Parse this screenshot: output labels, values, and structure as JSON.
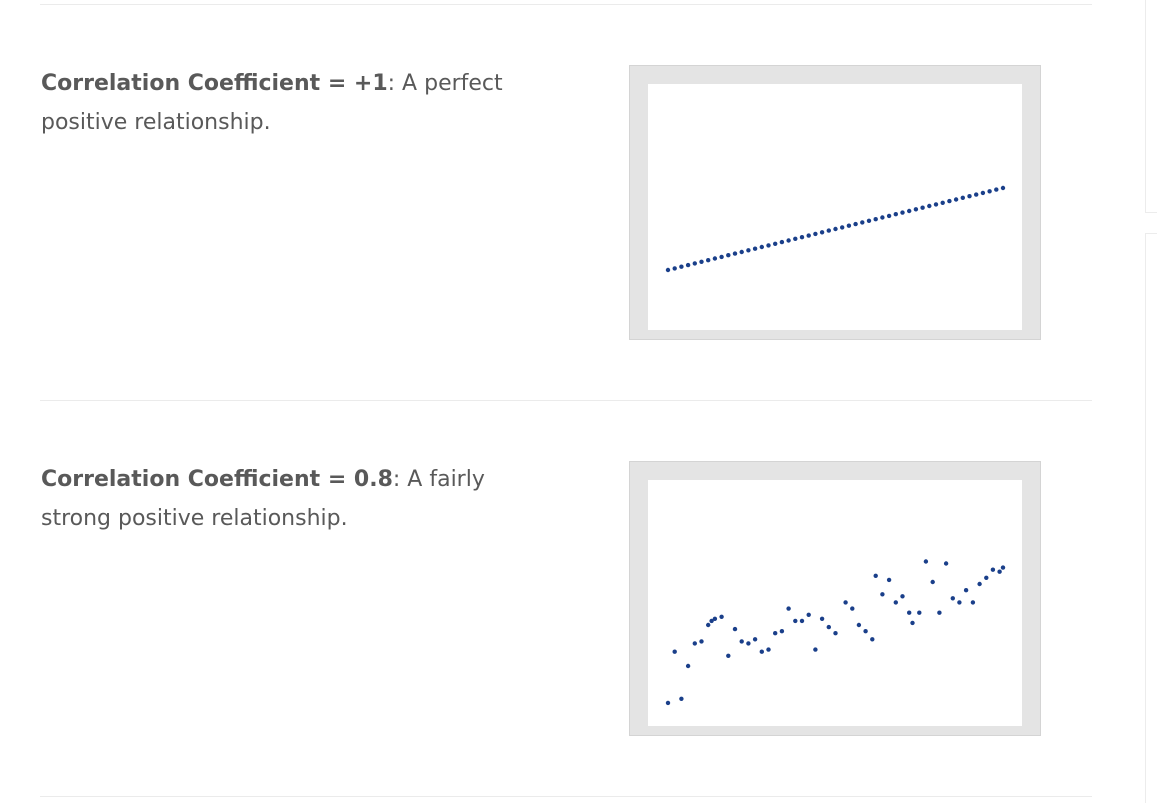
{
  "sections": [
    {
      "bold_text": "Correlation Coefficient = +1",
      "normal_text": ": A perfect positive relationship."
    },
    {
      "bold_text": "Correlation Coefficient = 0.8",
      "normal_text": ": A fairly strong positive relationship."
    }
  ],
  "chart_data": [
    {
      "type": "scatter",
      "title": "",
      "xlabel": "",
      "ylabel": "",
      "xlim": [
        0,
        100
      ],
      "ylim": [
        0,
        100
      ],
      "grid": false,
      "series": [
        {
          "color": "#1a3f8a",
          "points": [
            [
              0,
              20
            ],
            [
              2,
              20.8
            ],
            [
              4,
              21.6
            ],
            [
              6,
              22.4
            ],
            [
              8,
              23.2
            ],
            [
              10,
              24
            ],
            [
              12,
              24.8
            ],
            [
              14,
              25.6
            ],
            [
              16,
              26.4
            ],
            [
              18,
              27.2
            ],
            [
              20,
              28
            ],
            [
              22,
              28.8
            ],
            [
              24,
              29.6
            ],
            [
              26,
              30.4
            ],
            [
              28,
              31.2
            ],
            [
              30,
              32
            ],
            [
              32,
              32.8
            ],
            [
              34,
              33.6
            ],
            [
              36,
              34.4
            ],
            [
              38,
              35.2
            ],
            [
              40,
              36
            ],
            [
              42,
              36.8
            ],
            [
              44,
              37.6
            ],
            [
              46,
              38.4
            ],
            [
              48,
              39.2
            ],
            [
              50,
              40
            ],
            [
              52,
              40.8
            ],
            [
              54,
              41.6
            ],
            [
              56,
              42.4
            ],
            [
              58,
              43.2
            ],
            [
              60,
              44
            ],
            [
              62,
              44.8
            ],
            [
              64,
              45.6
            ],
            [
              66,
              46.4
            ],
            [
              68,
              47.2
            ],
            [
              70,
              48
            ],
            [
              72,
              48.8
            ],
            [
              74,
              49.6
            ],
            [
              76,
              50.4
            ],
            [
              78,
              51.2
            ],
            [
              80,
              52
            ],
            [
              82,
              52.8
            ],
            [
              84,
              53.6
            ],
            [
              86,
              54.4
            ],
            [
              88,
              55.2
            ],
            [
              90,
              56
            ],
            [
              92,
              56.8
            ],
            [
              94,
              57.6
            ],
            [
              96,
              58.4
            ],
            [
              98,
              59.2
            ],
            [
              100,
              60
            ]
          ]
        }
      ]
    },
    {
      "type": "scatter",
      "title": "",
      "xlabel": "",
      "ylabel": "",
      "xlim": [
        0,
        100
      ],
      "ylim": [
        0,
        100
      ],
      "grid": false,
      "series": [
        {
          "color": "#1a3f8a",
          "points": [
            [
              0,
              2
            ],
            [
              2,
              27
            ],
            [
              4,
              4
            ],
            [
              6,
              20
            ],
            [
              8,
              31
            ],
            [
              10,
              32
            ],
            [
              12,
              40
            ],
            [
              13,
              42
            ],
            [
              14,
              43
            ],
            [
              16,
              44
            ],
            [
              18,
              25
            ],
            [
              20,
              38
            ],
            [
              22,
              32
            ],
            [
              24,
              31
            ],
            [
              26,
              33
            ],
            [
              28,
              27
            ],
            [
              30,
              28
            ],
            [
              32,
              36
            ],
            [
              34,
              37
            ],
            [
              36,
              48
            ],
            [
              38,
              42
            ],
            [
              40,
              42
            ],
            [
              42,
              45
            ],
            [
              44,
              28
            ],
            [
              46,
              43
            ],
            [
              48,
              39
            ],
            [
              50,
              36
            ],
            [
              53,
              51
            ],
            [
              55,
              48
            ],
            [
              57,
              40
            ],
            [
              59,
              37
            ],
            [
              61,
              33
            ],
            [
              62,
              64
            ],
            [
              64,
              55
            ],
            [
              66,
              62
            ],
            [
              68,
              51
            ],
            [
              70,
              54
            ],
            [
              72,
              46
            ],
            [
              73,
              41
            ],
            [
              75,
              46
            ],
            [
              77,
              71
            ],
            [
              79,
              61
            ],
            [
              81,
              46
            ],
            [
              83,
              70
            ],
            [
              85,
              53
            ],
            [
              87,
              51
            ],
            [
              89,
              57
            ],
            [
              91,
              51
            ],
            [
              93,
              60
            ],
            [
              95,
              63
            ],
            [
              97,
              67
            ],
            [
              99,
              66
            ],
            [
              100,
              68
            ]
          ]
        }
      ]
    }
  ]
}
